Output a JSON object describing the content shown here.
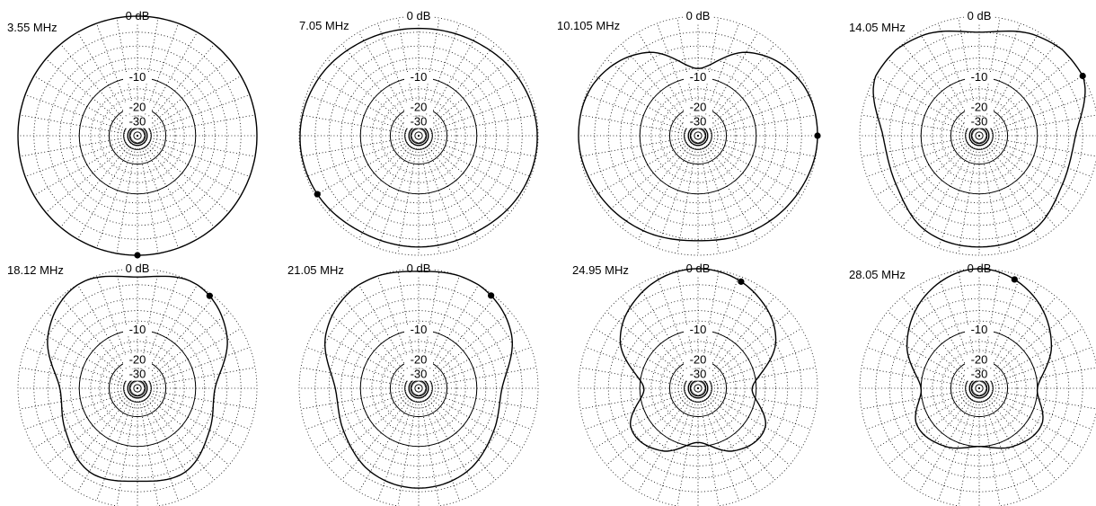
{
  "chart_data": [
    {
      "type": "polar",
      "title": "3.55 MHz",
      "ring_labels": [
        "0 dB",
        "-10",
        "-20",
        "-30"
      ],
      "rlim_db": [
        -40,
        0
      ],
      "pattern_db": [
        0,
        0,
        0,
        0,
        0,
        0,
        0,
        0,
        0,
        0,
        0,
        0
      ],
      "marker_deg": 180
    },
    {
      "type": "polar",
      "title": "7.05 MHz",
      "ring_labels": [
        "0 dB",
        "-10",
        "-20",
        "-30"
      ],
      "rlim_db": [
        -40,
        0
      ],
      "pattern_db": [
        -1.5,
        -1.2,
        -0.5,
        -0.1,
        -0.3,
        -0.9,
        -1.0,
        -0.9,
        -0.3,
        -0.1,
        -0.5,
        -1.2
      ],
      "marker_deg": 240
    },
    {
      "type": "polar",
      "title": "10.105 MHz",
      "ring_labels": [
        "0 dB",
        "-10",
        "-20",
        "-30"
      ],
      "rlim_db": [
        -40,
        0
      ],
      "pattern_db": [
        -8,
        -3,
        -0.5,
        0,
        -0.5,
        -1.2,
        -1.8,
        -1.2,
        -0.5,
        0,
        -0.5,
        -3
      ],
      "marker_deg": 90
    },
    {
      "type": "polar",
      "title": "14.05 MHz",
      "ring_labels": [
        "0 dB",
        "-10",
        "-20",
        "-30"
      ],
      "rlim_db": [
        -40,
        0
      ],
      "pattern_db": [
        -2,
        -0.5,
        0,
        -3,
        -3,
        -1.3,
        -1,
        -1.3,
        -3,
        -3,
        0,
        -0.5
      ],
      "marker_deg": 60
    },
    {
      "type": "polar",
      "title": "18.12 MHz",
      "ring_labels": [
        "0 dB",
        "-10",
        "-20",
        "-30"
      ],
      "rlim_db": [
        -40,
        0
      ],
      "pattern_db": [
        -1,
        0,
        -2,
        -6,
        -5,
        -3,
        -3.5,
        -3,
        -5,
        -6,
        -2,
        0
      ],
      "marker_deg": 38
    },
    {
      "type": "polar",
      "title": "21.05 MHz",
      "ring_labels": [
        "0 dB",
        "-10",
        "-20",
        "-30"
      ],
      "rlim_db": [
        -40,
        0
      ],
      "pattern_db": [
        -0.3,
        0,
        -1.5,
        -5,
        -4.5,
        -3,
        -2.5,
        -3,
        -4.5,
        -5,
        -1.5,
        0
      ],
      "marker_deg": 38
    },
    {
      "type": "polar",
      "title": "24.95 MHz",
      "ring_labels": [
        "0 dB",
        "-10",
        "-20",
        "-30"
      ],
      "rlim_db": [
        -40,
        0
      ],
      "pattern_db": [
        0,
        -1,
        -4,
        -11,
        -6,
        -7,
        -11,
        -7,
        -6,
        -11,
        -4,
        -1
      ],
      "marker_deg": 22
    },
    {
      "type": "polar",
      "title": "28.05 MHz",
      "ring_labels": [
        "0 dB",
        "-10",
        "-20",
        "-30"
      ],
      "rlim_db": [
        -40,
        0
      ],
      "pattern_db": [
        0,
        -1.5,
        -5,
        -10,
        -7,
        -8,
        -10,
        -8,
        -7,
        -10,
        -5,
        -1.5
      ],
      "marker_deg": 18
    }
  ]
}
